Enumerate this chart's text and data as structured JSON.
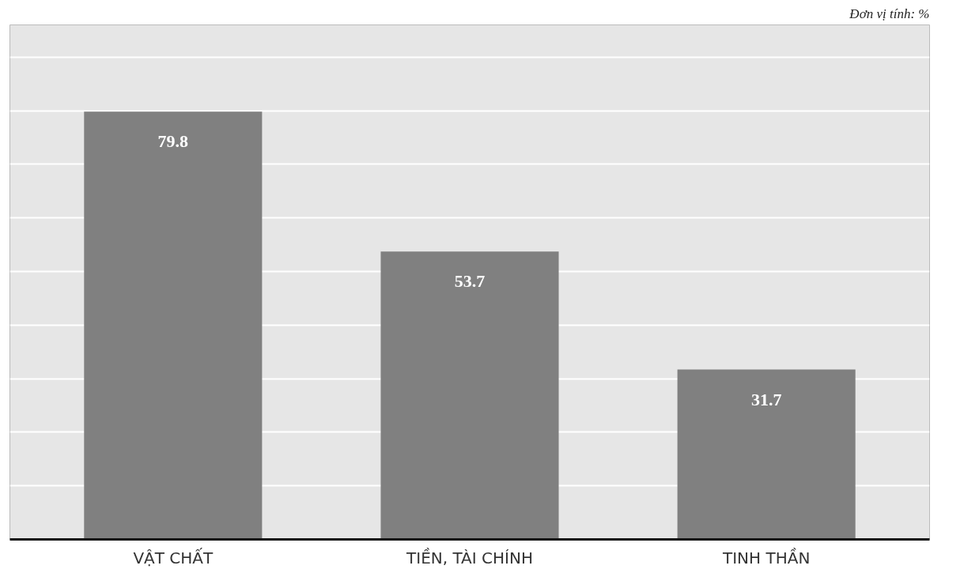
{
  "chart_data": {
    "type": "bar",
    "categories": [
      "VẬT CHẤT",
      "TIỀN, TÀI CHÍNH",
      "TINH THẦN"
    ],
    "values": [
      79.8,
      53.7,
      31.7
    ],
    "color": "#808080",
    "data_labels": true,
    "ylim": [
      0,
      96
    ],
    "yticks": [
      {
        "value": 0,
        "label": null
      },
      {
        "value": 10,
        "label": null
      },
      {
        "value": 20,
        "label": null
      },
      {
        "value": 30,
        "label": null
      },
      {
        "value": 40,
        "label": null
      },
      {
        "value": 50,
        "label": null
      },
      {
        "value": 60,
        "label": null
      },
      {
        "value": 70,
        "label": null
      },
      {
        "value": 80,
        "label": null
      },
      {
        "value": 90,
        "label": null
      }
    ],
    "grid": "y",
    "tick_labels": "x",
    "annotations": [
      "Đơn vị tính: %"
    ]
  }
}
